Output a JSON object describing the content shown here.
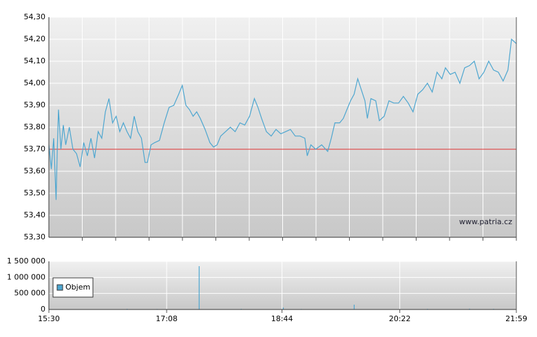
{
  "chart_data": [
    {
      "type": "line",
      "x": [
        "15:30",
        "15:32",
        "15:34",
        "15:36",
        "15:37",
        "15:38",
        "15:40",
        "15:42",
        "15:44",
        "15:47",
        "15:50",
        "15:53",
        "15:56",
        "15:59",
        "16:02",
        "16:05",
        "16:08",
        "16:11",
        "16:14",
        "16:17",
        "16:20",
        "16:23",
        "16:26",
        "16:29",
        "16:32",
        "16:35",
        "16:38",
        "16:41",
        "16:44",
        "16:47",
        "16:50",
        "16:52",
        "16:55",
        "16:58",
        "17:02",
        "17:06",
        "17:10",
        "17:14",
        "17:18",
        "17:21",
        "17:24",
        "17:27",
        "17:30",
        "17:33",
        "17:36",
        "17:40",
        "17:44",
        "17:47",
        "17:50",
        "17:53",
        "17:57",
        "18:01",
        "18:05",
        "18:09",
        "18:13",
        "18:17",
        "18:21",
        "18:24",
        "18:27",
        "18:31",
        "18:35",
        "18:39",
        "18:43",
        "18:47",
        "18:51",
        "18:55",
        "18:59",
        "19:03",
        "19:05",
        "19:08",
        "19:12",
        "19:17",
        "19:22",
        "19:25",
        "19:28",
        "19:32",
        "19:35",
        "19:38",
        "19:41",
        "19:44",
        "19:47",
        "19:50",
        "19:53",
        "19:55",
        "19:58",
        "20:02",
        "20:05",
        "20:09",
        "20:13",
        "20:17",
        "20:21",
        "20:25",
        "20:29",
        "20:33",
        "20:37",
        "20:41",
        "20:45",
        "20:49",
        "20:53",
        "20:57",
        "21:00",
        "21:04",
        "21:08",
        "21:12",
        "21:16",
        "21:20",
        "21:24",
        "21:28",
        "21:32",
        "21:36",
        "21:40",
        "21:44",
        "21:48",
        "21:52",
        "21:55",
        "21:59"
      ],
      "series": [
        {
          "color": "#4da6d0",
          "values": [
            53.72,
            53.61,
            53.75,
            53.47,
            53.7,
            53.88,
            53.7,
            53.81,
            53.72,
            53.8,
            53.7,
            53.68,
            53.62,
            53.73,
            53.67,
            53.75,
            53.66,
            53.78,
            53.75,
            53.87,
            53.93,
            53.82,
            53.85,
            53.78,
            53.82,
            53.78,
            53.75,
            53.85,
            53.78,
            53.75,
            53.64,
            53.64,
            53.72,
            53.73,
            53.74,
            53.82,
            53.89,
            53.9,
            53.95,
            53.99,
            53.9,
            53.88,
            53.85,
            53.87,
            53.84,
            53.79,
            53.73,
            53.71,
            53.72,
            53.76,
            53.78,
            53.8,
            53.78,
            53.82,
            53.81,
            53.85,
            53.93,
            53.89,
            53.84,
            53.78,
            53.76,
            53.79,
            53.77,
            53.78,
            53.79,
            53.76,
            53.76,
            53.75,
            53.67,
            53.72,
            53.7,
            53.72,
            53.69,
            53.75,
            53.82,
            53.82,
            53.84,
            53.88,
            53.92,
            53.95,
            54.02,
            53.97,
            53.92,
            53.84,
            53.93,
            53.92,
            53.83,
            53.85,
            53.92,
            53.91,
            53.91,
            53.94,
            53.91,
            53.87,
            53.95,
            53.97,
            54.0,
            53.96,
            54.05,
            54.02,
            54.07,
            54.04,
            54.05,
            54.0,
            54.07,
            54.08,
            54.1,
            54.02,
            54.05,
            54.1,
            54.06,
            54.05,
            54.01,
            54.06,
            54.2,
            54.18
          ]
        }
      ],
      "reference_line": {
        "value": 53.7,
        "color": "#e03030"
      },
      "xlim": [
        "15:30",
        "21:59"
      ],
      "ylim": [
        53.3,
        54.3
      ],
      "yticks": [
        {
          "value": 53.3,
          "label": "53,30"
        },
        {
          "value": 53.4,
          "label": "53,40"
        },
        {
          "value": 53.5,
          "label": "53,50"
        },
        {
          "value": 53.6,
          "label": "53,60"
        },
        {
          "value": 53.7,
          "label": "53,70"
        },
        {
          "value": 53.8,
          "label": "53,80"
        },
        {
          "value": 53.9,
          "label": "53,90"
        },
        {
          "value": 54.0,
          "label": "54,00"
        },
        {
          "value": 54.1,
          "label": "54,10"
        },
        {
          "value": 54.2,
          "label": "54,20"
        },
        {
          "value": 54.3,
          "label": "54,30"
        }
      ],
      "grid": true,
      "annotation": "www.patria.cz"
    },
    {
      "type": "bar",
      "x": [
        "16:00",
        "16:35",
        "17:00",
        "17:35",
        "18:10",
        "18:45",
        "19:00",
        "19:44",
        "20:45",
        "21:20",
        "21:40"
      ],
      "series": [
        {
          "name": "Objem",
          "color": "#4da6d0",
          "values": [
            10000,
            20000,
            15000,
            1350000,
            20000,
            60000,
            15000,
            150000,
            20000,
            25000,
            20000
          ]
        }
      ],
      "xlim": [
        "15:30",
        "21:59"
      ],
      "xticks": [
        "15:30",
        "17:08",
        "18:44",
        "20:22",
        "21:59"
      ],
      "ylim": [
        0,
        1500000
      ],
      "yticks": [
        0,
        {
          "value": 500000,
          "label": "500 000"
        },
        {
          "value": 1000000,
          "label": "1 000 000"
        },
        {
          "value": 1500000,
          "label": "1 500 000"
        }
      ],
      "grid": true,
      "legend": "upper left"
    }
  ]
}
